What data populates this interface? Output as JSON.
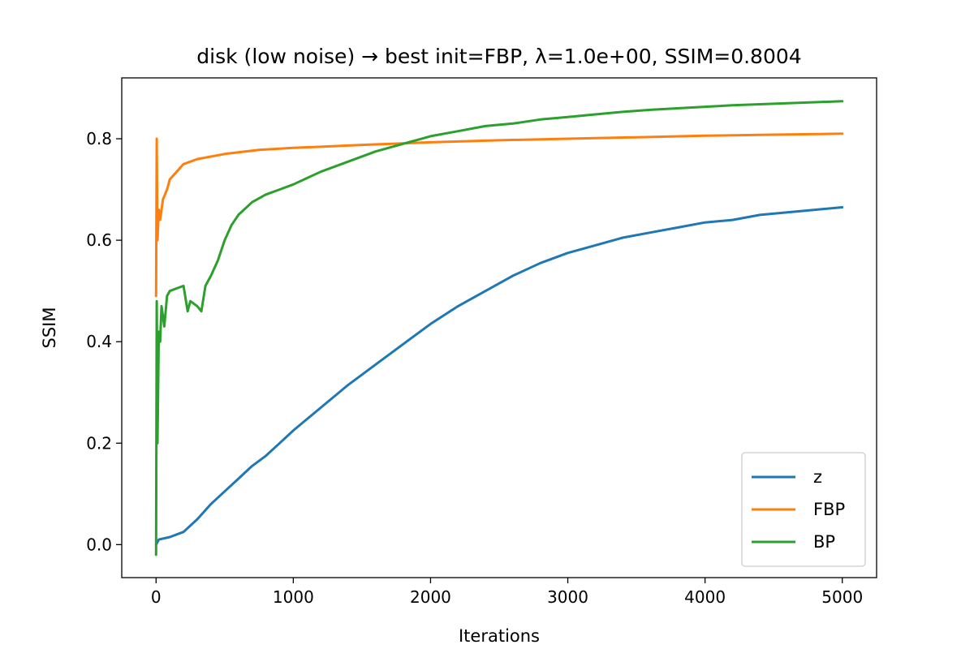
{
  "chart_data": {
    "type": "line",
    "title": "disk (low noise) → best init=FBP, λ=1.0e+00, SSIM=0.8004",
    "xlabel": "Iterations",
    "ylabel": "SSIM",
    "xlim": [
      -250,
      5250
    ],
    "ylim": [
      -0.065,
      0.92
    ],
    "xticks": [
      0,
      1000,
      2000,
      3000,
      4000,
      5000
    ],
    "xtick_labels": [
      "0",
      "1000",
      "2000",
      "3000",
      "4000",
      "5000"
    ],
    "yticks": [
      0.0,
      0.2,
      0.4,
      0.6,
      0.8
    ],
    "ytick_labels": [
      "0.0",
      "0.2",
      "0.4",
      "0.6",
      "0.8"
    ],
    "grid": false,
    "legend_position": "lower-right",
    "series": [
      {
        "name": "z",
        "color": "#1f77b4",
        "x": [
          0,
          20,
          100,
          200,
          300,
          400,
          500,
          600,
          700,
          800,
          900,
          1000,
          1200,
          1400,
          1600,
          1800,
          2000,
          2200,
          2400,
          2600,
          2800,
          3000,
          3200,
          3400,
          3600,
          3800,
          4000,
          4200,
          4400,
          4600,
          4800,
          5000
        ],
        "y": [
          0.0,
          0.01,
          0.015,
          0.025,
          0.05,
          0.08,
          0.105,
          0.13,
          0.155,
          0.175,
          0.2,
          0.225,
          0.27,
          0.315,
          0.355,
          0.395,
          0.435,
          0.47,
          0.5,
          0.53,
          0.555,
          0.575,
          0.59,
          0.605,
          0.615,
          0.625,
          0.635,
          0.64,
          0.65,
          0.655,
          0.66,
          0.665
        ]
      },
      {
        "name": "FBP",
        "color": "#ff7f0e",
        "x": [
          0,
          5,
          10,
          20,
          30,
          50,
          80,
          100,
          150,
          200,
          300,
          500,
          750,
          1000,
          1500,
          2000,
          2500,
          3000,
          3500,
          4000,
          4500,
          5000
        ],
        "y": [
          0.49,
          0.8,
          0.6,
          0.66,
          0.64,
          0.68,
          0.7,
          0.72,
          0.735,
          0.75,
          0.76,
          0.77,
          0.778,
          0.782,
          0.788,
          0.793,
          0.797,
          0.8,
          0.803,
          0.806,
          0.808,
          0.81
        ]
      },
      {
        "name": "BP",
        "color": "#2ca02c",
        "x": [
          0,
          5,
          10,
          20,
          30,
          40,
          60,
          80,
          100,
          150,
          200,
          230,
          250,
          300,
          330,
          360,
          400,
          450,
          500,
          550,
          600,
          700,
          800,
          900,
          1000,
          1200,
          1400,
          1600,
          1800,
          2000,
          2200,
          2400,
          2600,
          2800,
          3000,
          3200,
          3400,
          3600,
          3800,
          4000,
          4200,
          4400,
          4600,
          4800,
          5000
        ],
        "y": [
          -0.02,
          0.48,
          0.2,
          0.42,
          0.4,
          0.47,
          0.43,
          0.49,
          0.5,
          0.505,
          0.51,
          0.46,
          0.48,
          0.47,
          0.46,
          0.51,
          0.53,
          0.56,
          0.6,
          0.63,
          0.65,
          0.675,
          0.69,
          0.7,
          0.71,
          0.735,
          0.755,
          0.775,
          0.79,
          0.805,
          0.815,
          0.825,
          0.83,
          0.838,
          0.843,
          0.848,
          0.853,
          0.857,
          0.86,
          0.863,
          0.866,
          0.868,
          0.87,
          0.872,
          0.874
        ]
      }
    ]
  }
}
